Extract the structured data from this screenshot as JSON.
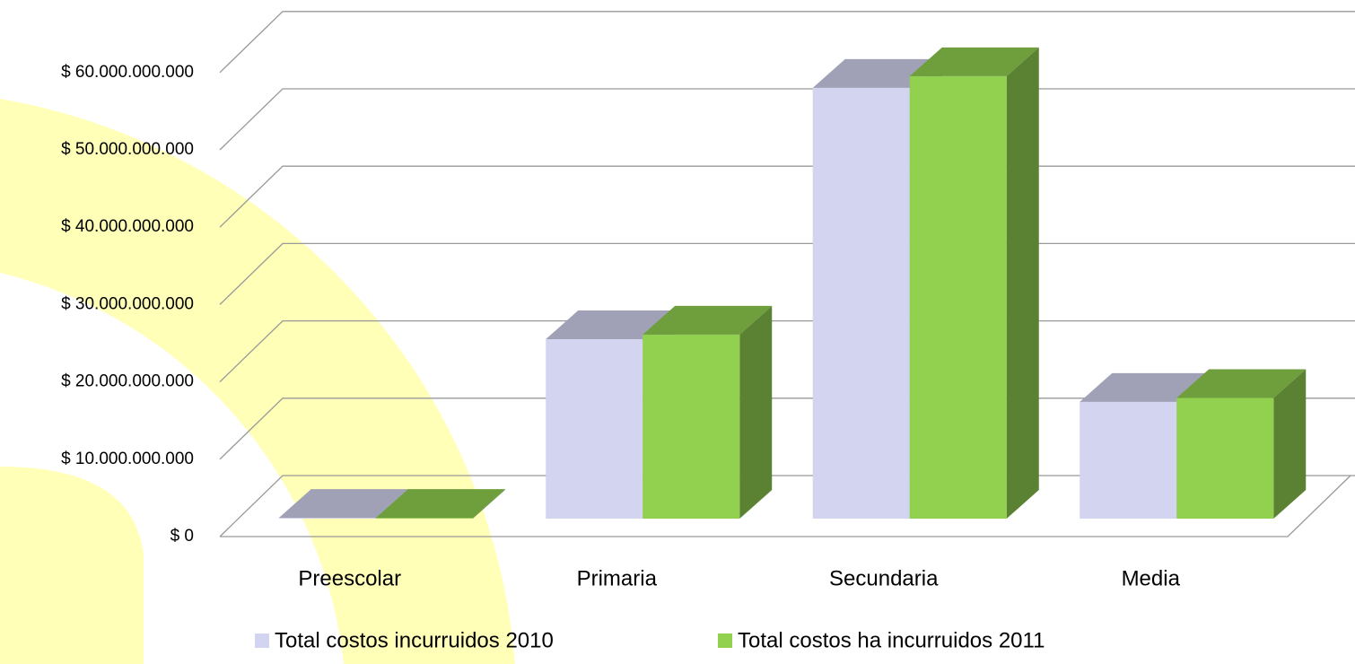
{
  "chart_data": {
    "type": "bar3d",
    "categories": [
      "Preescolar",
      "Primaria",
      "Secundaria",
      "Media"
    ],
    "series": [
      {
        "name": "Total costos incurruidos 2010",
        "color": "#d2d4f0",
        "values": [
          100000000,
          23200000000,
          55700000000,
          15100000000
        ]
      },
      {
        "name": "Total costos ha incurruidos 2011",
        "color": "#92d050",
        "values": [
          100000000,
          23800000000,
          57200000000,
          15600000000
        ]
      }
    ],
    "ylim": [
      0,
      60000000000
    ],
    "yticks": [
      {
        "value": 0,
        "label": "$ 0"
      },
      {
        "value": 10000000000,
        "label": "$ 10.000.000.000"
      },
      {
        "value": 20000000000,
        "label": "$ 20.000.000.000"
      },
      {
        "value": 30000000000,
        "label": "$ 30.000.000.000"
      },
      {
        "value": 40000000000,
        "label": "$ 40.000.000.000"
      },
      {
        "value": 50000000000,
        "label": "$ 50.000.000.000"
      },
      {
        "value": 60000000000,
        "label": "$ 60.000.000.000"
      }
    ],
    "grid": true,
    "legend": "bottom"
  }
}
